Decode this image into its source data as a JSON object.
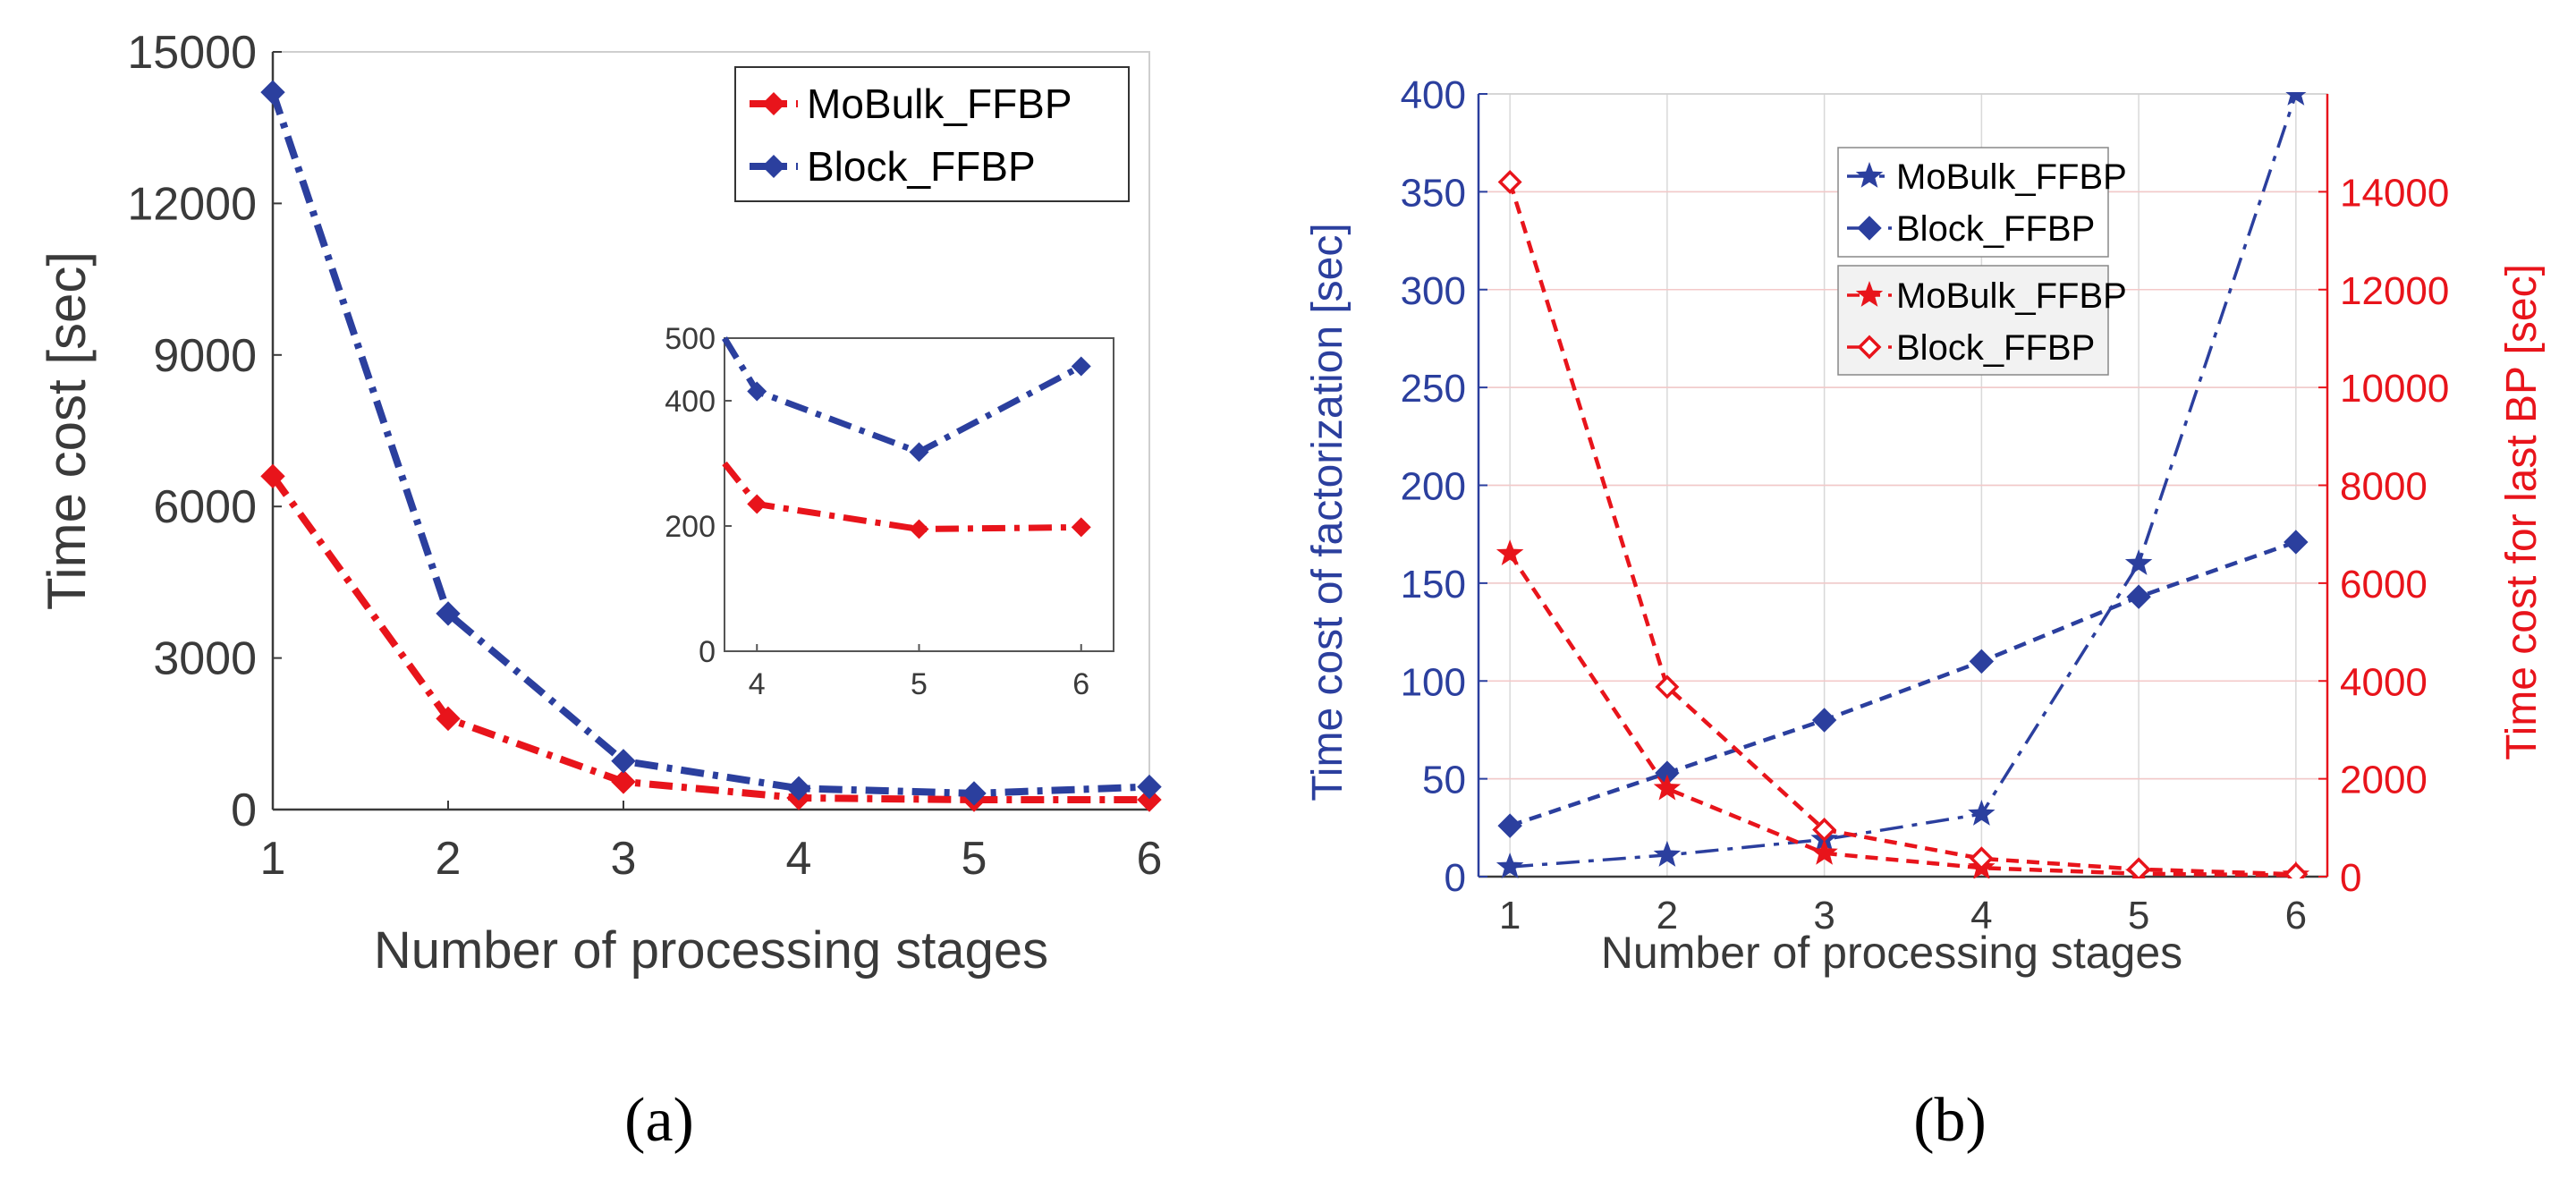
{
  "colors": {
    "red": "#e8141b",
    "blue": "#2b3f9e",
    "axis_gray": "#3a3a3a",
    "grid": "#d9d9d9",
    "grid_red": "#f3c8c8",
    "legend_bg": "#f2f2f2"
  },
  "chart_data": [
    {
      "id": "a",
      "type": "line",
      "caption": "(a)",
      "xlabel": "Number of processing stages",
      "ylabel": "Time cost [sec]",
      "x": [
        1,
        2,
        3,
        4,
        5,
        6
      ],
      "xlim": [
        1,
        6
      ],
      "ylim": [
        0,
        15000
      ],
      "xticks": [
        "1",
        "2",
        "3",
        "4",
        "5",
        "6"
      ],
      "yticks": [
        "0",
        "3000",
        "6000",
        "9000",
        "12000",
        "15000"
      ],
      "grid": false,
      "legend_position": "top-right",
      "series": [
        {
          "name": "MoBulk_FFBP",
          "color": "#e8141b",
          "marker": "diamond-filled",
          "line": "dashdot",
          "values": [
            6600,
            1800,
            550,
            230,
            195,
            195
          ]
        },
        {
          "name": "Block_FFBP",
          "color": "#2b3f9e",
          "marker": "diamond-filled",
          "line": "dashdot",
          "values": [
            14200,
            3880,
            960,
            420,
            320,
            450
          ]
        }
      ],
      "inset": {
        "x": [
          4,
          5,
          6
        ],
        "xlim": [
          3.8,
          6.2
        ],
        "ylim": [
          0,
          500
        ],
        "xticks": [
          "4",
          "5",
          "6"
        ],
        "yticks": [
          "0",
          "200",
          "400",
          "500"
        ],
        "series": [
          {
            "name": "MoBulk_FFBP",
            "color": "#e8141b",
            "values": [
              235,
              195,
              198
            ],
            "entry": 300
          },
          {
            "name": "Block_FFBP",
            "color": "#2b3f9e",
            "values": [
              415,
              318,
              455
            ],
            "entry": 500
          }
        ]
      }
    },
    {
      "id": "b",
      "type": "line",
      "caption": "(b)",
      "xlabel": "Number of processing stages",
      "ylabel_left": "Time cost of factorization [sec]",
      "ylabel_right": "Time cost for last BP [sec]",
      "x": [
        1,
        2,
        3,
        4,
        5,
        6
      ],
      "xlim": [
        0.8,
        6.2
      ],
      "ylim_left": [
        0,
        400
      ],
      "ylim_right": [
        0,
        16000
      ],
      "xticks": [
        "1",
        "2",
        "3",
        "4",
        "5",
        "6"
      ],
      "yticks_left": [
        "0",
        "50",
        "100",
        "150",
        "200",
        "250",
        "300",
        "350",
        "400"
      ],
      "yticks_right": [
        "0",
        "2000",
        "4000",
        "6000",
        "8000",
        "10000",
        "12000",
        "14000"
      ],
      "grid": true,
      "legend_position": "top-center",
      "series": [
        {
          "name": "MoBulk_FFBP",
          "axis": "left",
          "color": "#2b3f9e",
          "marker": "star",
          "line": "dashdot",
          "values": [
            5,
            11,
            19,
            32,
            160,
            400
          ]
        },
        {
          "name": "Block_FFBP",
          "axis": "left",
          "color": "#2b3f9e",
          "marker": "diamond-filled",
          "line": "dashed",
          "values": [
            26,
            53,
            80,
            110,
            143,
            171
          ]
        },
        {
          "name": "MoBulk_FFBP",
          "axis": "right",
          "color": "#e8141b",
          "marker": "star",
          "line": "dashed",
          "values": [
            6600,
            1800,
            480,
            180,
            60,
            30
          ]
        },
        {
          "name": "Block_FFBP",
          "axis": "right",
          "color": "#e8141b",
          "marker": "diamond-open",
          "line": "dashed",
          "values": [
            14200,
            3880,
            960,
            370,
            150,
            50
          ]
        }
      ]
    }
  ]
}
